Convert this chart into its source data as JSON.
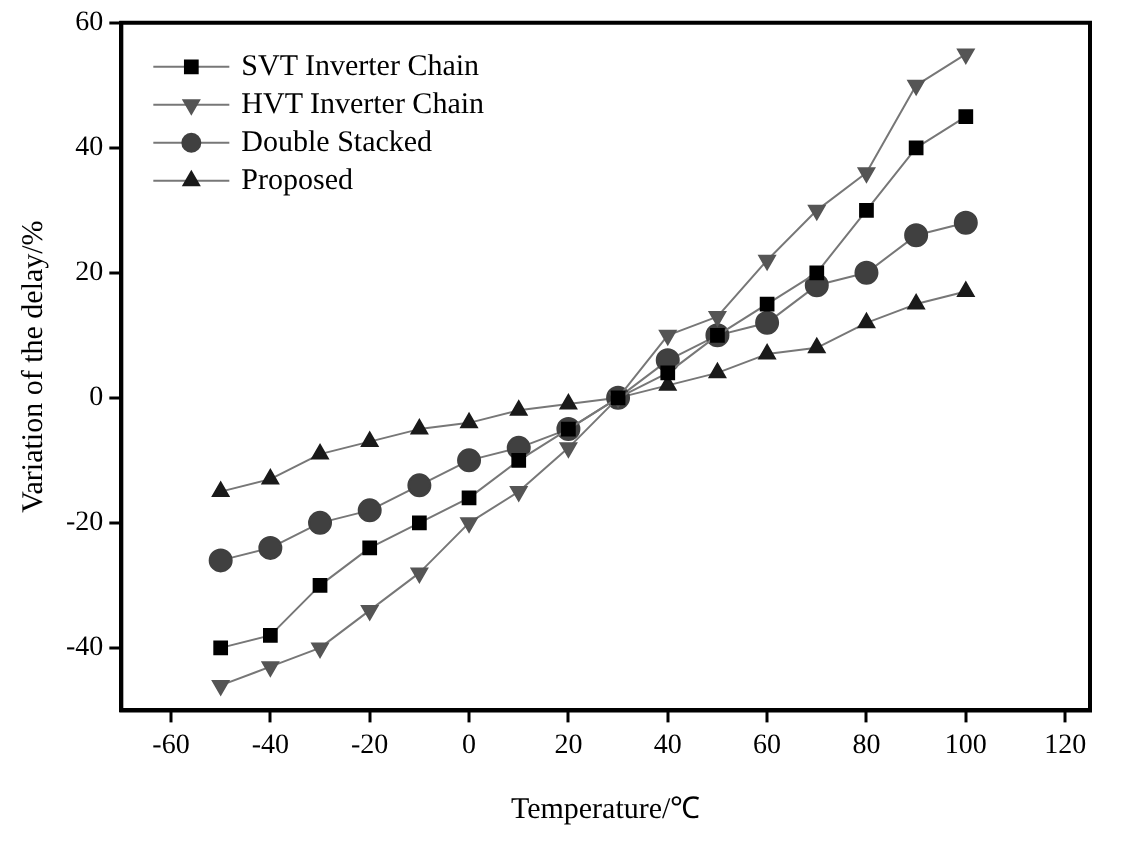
{
  "chart_data": {
    "type": "line",
    "xlabel": "Temperature/℃",
    "ylabel": "Variation of the delay/%",
    "x": [
      -50,
      -40,
      -30,
      -20,
      -10,
      0,
      10,
      20,
      30,
      40,
      50,
      60,
      70,
      80,
      90,
      100
    ],
    "series": [
      {
        "name": "SVT Inverter Chain",
        "color": "#000000",
        "marker": "square",
        "values": [
          -40,
          -38,
          -30,
          -24,
          -20,
          -16,
          -10,
          -5,
          0,
          4,
          10,
          15,
          20,
          30,
          40,
          45
        ]
      },
      {
        "name": "HVT Inverter Chain",
        "color": "#555555",
        "marker": "triangle-down",
        "values": [
          -46,
          -43,
          -40,
          -34,
          -28,
          -20,
          -15,
          -8,
          0,
          10,
          13,
          22,
          30,
          36,
          50,
          55
        ]
      },
      {
        "name": "Double Stacked",
        "color": "#404040",
        "marker": "circle",
        "values": [
          -26,
          -24,
          -20,
          -18,
          -14,
          -10,
          -8,
          -5,
          0,
          6,
          10,
          12,
          18,
          20,
          26,
          28
        ]
      },
      {
        "name": "Proposed",
        "color": "#1a1a1a",
        "marker": "triangle",
        "values": [
          -15,
          -13,
          -9,
          -7,
          -5,
          -4,
          -2,
          -1,
          0,
          2,
          4,
          7,
          8,
          12,
          15,
          17
        ]
      }
    ],
    "xlim": [
      -70,
      125
    ],
    "xticks": [
      -60,
      -40,
      -20,
      0,
      20,
      40,
      60,
      80,
      100,
      120
    ],
    "ylim": [
      -50,
      60
    ],
    "yticks": [
      -40,
      -20,
      0,
      20,
      40,
      60
    ],
    "grid": false,
    "legend": "top left"
  }
}
